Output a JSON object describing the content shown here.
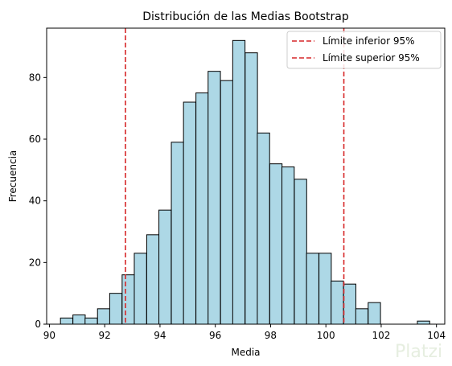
{
  "watermark": "Platzi",
  "chart_data": {
    "type": "bar",
    "title": "Distribución de las Medias Bootstrap",
    "xlabel": "Media",
    "ylabel": "Frecuencia",
    "xlim": [
      89.9,
      104.3
    ],
    "ylim": [
      0,
      96
    ],
    "xticks": [
      90,
      92,
      94,
      96,
      98,
      100,
      102,
      104
    ],
    "yticks": [
      0,
      20,
      40,
      60,
      80
    ],
    "bin_width": 0.445,
    "bins_left": [
      90.4,
      90.85,
      91.29,
      91.74,
      92.18,
      92.63,
      93.07,
      93.52,
      93.96,
      94.41,
      94.85,
      95.3,
      95.74,
      96.19,
      96.63,
      97.08,
      97.52,
      97.97,
      98.41,
      98.86,
      99.3,
      99.75,
      100.19,
      100.64,
      101.08,
      101.53,
      101.97,
      102.42,
      102.86,
      103.31
    ],
    "values": [
      2,
      3,
      2,
      5,
      10,
      16,
      23,
      29,
      37,
      59,
      72,
      75,
      82,
      79,
      92,
      88,
      62,
      52,
      51,
      47,
      23,
      23,
      14,
      13,
      5,
      7,
      0,
      0,
      0,
      1
    ],
    "bar_color": "#add8e6",
    "bar_edge_color": "#000000",
    "lines": [
      {
        "name": "Límite inferior 95%",
        "x": 92.75,
        "color": "#d62728",
        "style": "dashed"
      },
      {
        "name": "Límite superior 95%",
        "x": 100.65,
        "color": "#d62728",
        "style": "dashed"
      }
    ],
    "legend_position": "top-right",
    "grid": false
  }
}
